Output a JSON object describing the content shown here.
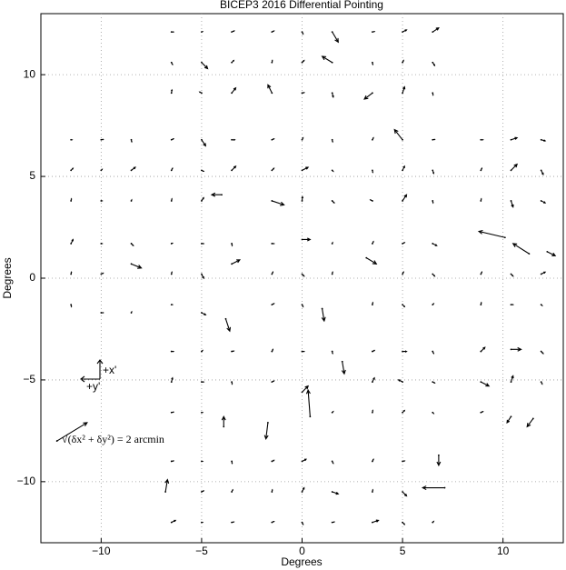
{
  "chart_data": {
    "type": "quiver",
    "title": "BICEP3 2016 Differential Pointing",
    "x_label": "Degrees",
    "y_label": "Degrees",
    "xlim": [
      -13,
      13
    ],
    "ylim": [
      -13,
      13
    ],
    "xticks": [
      {
        "value": -10,
        "label": "−10"
      },
      {
        "value": -5,
        "label": "−5"
      },
      0,
      5,
      10
    ],
    "yticks": [
      {
        "value": -10,
        "label": "−10"
      },
      {
        "value": -5,
        "label": "−5"
      },
      0,
      5,
      10
    ],
    "grid": true,
    "color": "#000000",
    "axes_labels": [
      "+x'",
      "+y'"
    ],
    "scale_label": "√(δx² + δy²) = 2 arcmin",
    "scale_arrow": [
      -12.2,
      -8.0,
      1.5,
      0.9
    ],
    "arrows": [
      [
        -6.5,
        12.1,
        0.1,
        0
      ],
      [
        -5,
        12.1,
        0.05,
        0.02
      ],
      [
        -3.5,
        12.1,
        0.12,
        0.05
      ],
      [
        -6.5,
        10.6,
        0.05,
        -0.1
      ],
      [
        -5,
        10.6,
        0.3,
        -0.3
      ],
      [
        -3.5,
        10.6,
        0.1,
        0.1
      ],
      [
        -6.5,
        9.1,
        0.02,
        0.15
      ],
      [
        -5,
        9.1,
        -0.1,
        0.05
      ],
      [
        -3.5,
        9.1,
        0.2,
        0.25
      ],
      [
        -1.5,
        12.1,
        0.1,
        0.05
      ],
      [
        0,
        12.1,
        0.05,
        -0.1
      ],
      [
        1.5,
        12.1,
        0.3,
        -0.5
      ],
      [
        -1.5,
        10.6,
        0.02,
        0.1
      ],
      [
        0,
        10.6,
        0.1,
        0.1
      ],
      [
        1.5,
        10.6,
        -0.5,
        0.3
      ],
      [
        -1.5,
        9.1,
        -0.2,
        0.4
      ],
      [
        0,
        9.1,
        0.1,
        0.02
      ],
      [
        1.5,
        9.1,
        0.05,
        -0.2
      ],
      [
        3.5,
        12.1,
        0.1,
        0.02
      ],
      [
        5,
        12.1,
        0.2,
        0.1
      ],
      [
        6.5,
        12.1,
        0.3,
        0.2
      ],
      [
        3.5,
        10.6,
        0.02,
        -0.1
      ],
      [
        5,
        10.6,
        0.05,
        0.1
      ],
      [
        6.5,
        10.6,
        0.1,
        -0.15
      ],
      [
        3.5,
        9.1,
        -0.4,
        -0.3
      ],
      [
        5,
        9.1,
        0.1,
        0.3
      ],
      [
        6.5,
        9.1,
        0.02,
        -0.1
      ],
      [
        -11.5,
        6.8,
        0.05,
        0
      ],
      [
        -10,
        6.8,
        0.1,
        0.02
      ],
      [
        -8.5,
        6.8,
        0.02,
        -0.1
      ],
      [
        -11.5,
        5.3,
        0.1,
        0.1
      ],
      [
        -10,
        5.3,
        0.05,
        0.05
      ],
      [
        -8.5,
        5.3,
        0.2,
        0.15
      ],
      [
        -11.5,
        3.8,
        0.02,
        0.1
      ],
      [
        -10,
        3.8,
        0.05,
        0
      ],
      [
        -8.5,
        3.8,
        0.02,
        0.05
      ],
      [
        -6.5,
        6.8,
        0.1,
        0.05
      ],
      [
        -5,
        6.8,
        0.2,
        -0.3
      ],
      [
        -3.5,
        6.8,
        0.15,
        0
      ],
      [
        -6.5,
        5.3,
        0.05,
        0.1
      ],
      [
        -5,
        5.3,
        0.1,
        -0.05
      ],
      [
        -3.5,
        5.3,
        0.2,
        0.2
      ],
      [
        -6.5,
        3.8,
        0.02,
        0.1
      ],
      [
        -5,
        3.8,
        0.1,
        0.15
      ],
      [
        -4,
        4.1,
        -0.5,
        0
      ],
      [
        -1.5,
        6.8,
        0.1,
        0.05
      ],
      [
        0,
        6.8,
        0.05,
        0.1
      ],
      [
        1.5,
        6.8,
        0.02,
        -0.1
      ],
      [
        -1.5,
        5.3,
        0.1,
        0.1
      ],
      [
        0,
        5.3,
        0.3,
        0.15
      ],
      [
        1.5,
        5.3,
        0.05,
        -0.05
      ],
      [
        -1.5,
        3.8,
        0.6,
        -0.2
      ],
      [
        0,
        3.8,
        0.02,
        0.2
      ],
      [
        1.5,
        3.8,
        0.1,
        -0.1
      ],
      [
        3.5,
        6.8,
        0.05,
        0.1
      ],
      [
        5,
        6.8,
        -0.4,
        0.5
      ],
      [
        6.5,
        6.8,
        0.1,
        0.02
      ],
      [
        3.5,
        5.3,
        0.02,
        -0.1
      ],
      [
        5,
        5.3,
        0.1,
        0.2
      ],
      [
        6.5,
        5.3,
        0.05,
        -0.15
      ],
      [
        3.5,
        3.8,
        -0.1,
        0.05
      ],
      [
        5,
        3.8,
        0.2,
        0.3
      ],
      [
        6.5,
        3.8,
        0.02,
        -0.1
      ],
      [
        8.9,
        6.8,
        0.1,
        0
      ],
      [
        10.4,
        6.8,
        0.3,
        0.1
      ],
      [
        11.9,
        6.8,
        0.2,
        -0.05
      ],
      [
        8.9,
        5.3,
        0.05,
        0.1
      ],
      [
        10.4,
        5.3,
        0.3,
        0.3
      ],
      [
        11.9,
        5.3,
        0.1,
        -0.2
      ],
      [
        8.9,
        3.8,
        0.02,
        0.1
      ],
      [
        10.4,
        3.8,
        0.1,
        -0.3
      ],
      [
        11.9,
        3.8,
        0.2,
        -0.1
      ],
      [
        -11.5,
        1.7,
        0.1,
        0.2
      ],
      [
        -10,
        1.7,
        0.05,
        0
      ],
      [
        -8.5,
        1.7,
        0.1,
        -0.1
      ],
      [
        -11.5,
        0.2,
        0.02,
        0.1
      ],
      [
        -10,
        0.2,
        0.1,
        0.05
      ],
      [
        -8.5,
        0.7,
        0.5,
        -0.2
      ],
      [
        -11.5,
        -1.3,
        0.02,
        -0.1
      ],
      [
        -10,
        -1.7,
        0.1,
        0
      ],
      [
        -8.5,
        -1.7,
        0.02,
        0.05
      ],
      [
        -6.5,
        1.7,
        0.05,
        0.02
      ],
      [
        -5,
        1.7,
        0.1,
        0
      ],
      [
        -3.5,
        1.7,
        0.02,
        -0.1
      ],
      [
        -6.5,
        0.2,
        0.02,
        0.1
      ],
      [
        -5,
        0.2,
        0.1,
        -0.2
      ],
      [
        -3.5,
        0.7,
        0.4,
        0.2
      ],
      [
        -6.5,
        -1.3,
        0.05,
        0
      ],
      [
        -5,
        -1.7,
        0.2,
        -0.1
      ],
      [
        -3.8,
        -2.0,
        0.2,
        -0.6
      ],
      [
        -1.5,
        1.7,
        0.1,
        0
      ],
      [
        0,
        1.9,
        0.4,
        0
      ],
      [
        1.5,
        1.7,
        0.02,
        0.05
      ],
      [
        -1.5,
        0.2,
        0.05,
        0.1
      ],
      [
        0,
        0.2,
        0.1,
        -0.1
      ],
      [
        1.5,
        0.2,
        0.02,
        0.1
      ],
      [
        -1.5,
        -1.3,
        0.1,
        0.05
      ],
      [
        0,
        -1.3,
        0.05,
        -0.1
      ],
      [
        1.0,
        -1.5,
        0.1,
        -0.6
      ],
      [
        3.5,
        1.7,
        0.05,
        0.1
      ],
      [
        5,
        1.7,
        0.1,
        0.05
      ],
      [
        6.5,
        1.7,
        0.2,
        -0.1
      ],
      [
        3.2,
        1.0,
        0.5,
        -0.3
      ],
      [
        5,
        0.2,
        0.05,
        0.1
      ],
      [
        6.5,
        0.2,
        0.1,
        -0.1
      ],
      [
        3.5,
        -1.3,
        0.02,
        0.1
      ],
      [
        5,
        -1.3,
        0.1,
        -0.1
      ],
      [
        6.5,
        -1.3,
        0.05,
        0.05
      ],
      [
        10.1,
        2.0,
        -1.3,
        0.3
      ],
      [
        11.3,
        1.2,
        -0.8,
        0.5
      ],
      [
        12.2,
        1.3,
        0.4,
        -0.2
      ],
      [
        8.9,
        0.2,
        0.05,
        0.1
      ],
      [
        10.4,
        0.2,
        0.1,
        -0.1
      ],
      [
        11.9,
        0.2,
        0.2,
        0.1
      ],
      [
        8.9,
        -1.3,
        0.02,
        0.1
      ],
      [
        10.4,
        -1.3,
        0.1,
        0
      ],
      [
        11.9,
        -1.3,
        0.05,
        -0.05
      ],
      [
        -6.5,
        -3.6,
        0.1,
        0
      ],
      [
        -5,
        -3.6,
        0.05,
        0.05
      ],
      [
        -3.5,
        -3.6,
        0.1,
        0.02
      ],
      [
        -6.5,
        -5.1,
        0.05,
        0.2
      ],
      [
        -5,
        -5.1,
        0.1,
        0
      ],
      [
        -3.5,
        -5.1,
        0.02,
        -0.1
      ],
      [
        -6.5,
        -6.6,
        0.1,
        0.02
      ],
      [
        -5,
        -6.6,
        0.05,
        0
      ],
      [
        -3.9,
        -7.3,
        0,
        0.5
      ],
      [
        -1.5,
        -3.6,
        0.05,
        0.1
      ],
      [
        0,
        -3.6,
        0.1,
        0
      ],
      [
        1.5,
        -3.6,
        0.02,
        -0.1
      ],
      [
        -1.5,
        -5.1,
        0.1,
        0.05
      ],
      [
        0,
        -5.6,
        0.3,
        0.3
      ],
      [
        2.0,
        -4.1,
        0.1,
        -0.6
      ],
      [
        -1.7,
        -7.1,
        -0.1,
        -0.8
      ],
      [
        0.4,
        -6.8,
        -0.1,
        1.3
      ],
      [
        1.5,
        -6.6,
        0.05,
        0.05
      ],
      [
        3.5,
        -3.6,
        0.1,
        0.05
      ],
      [
        5,
        -3.6,
        0.2,
        0
      ],
      [
        6.5,
        -3.6,
        0.05,
        -0.1
      ],
      [
        3.5,
        -5.1,
        0.1,
        0.2
      ],
      [
        5,
        -5.1,
        -0.2,
        0.1
      ],
      [
        6.5,
        -5.1,
        0.1,
        -0.05
      ],
      [
        3.5,
        -6.6,
        0.02,
        0.1
      ],
      [
        5,
        -6.6,
        0.1,
        0.1
      ],
      [
        6.5,
        -6.6,
        0.05,
        -0.05
      ],
      [
        8.9,
        -3.6,
        0.2,
        0.2
      ],
      [
        10.4,
        -3.5,
        0.5,
        0
      ],
      [
        11.9,
        -3.6,
        0.1,
        -0.1
      ],
      [
        8.9,
        -5.1,
        0.4,
        -0.2
      ],
      [
        10.4,
        -5.1,
        0.1,
        0.3
      ],
      [
        11.9,
        -5.1,
        0.05,
        -0.1
      ],
      [
        8.9,
        -6.6,
        0.1,
        0.05
      ],
      [
        10.4,
        -6.8,
        -0.2,
        -0.3
      ],
      [
        11.5,
        -6.9,
        -0.3,
        -0.4
      ],
      [
        -6.5,
        -9.0,
        0.1,
        0.02
      ],
      [
        -5,
        -9.0,
        0.05,
        0
      ],
      [
        -3.5,
        -9.0,
        0.02,
        -0.1
      ],
      [
        -6.8,
        -10.5,
        0.1,
        0.6
      ],
      [
        -5,
        -10.5,
        0.1,
        0.05
      ],
      [
        -3.5,
        -10.5,
        0.05,
        0.1
      ],
      [
        -6.5,
        -12.0,
        0.2,
        0.1
      ],
      [
        -5,
        -12.0,
        0.05,
        0
      ],
      [
        -3.5,
        -12.0,
        0.1,
        0.02
      ],
      [
        -1.5,
        -9.0,
        0.1,
        0.05
      ],
      [
        0,
        -9.0,
        0.2,
        0.1
      ],
      [
        1.5,
        -9.0,
        0.05,
        -0.1
      ],
      [
        -1.5,
        -10.5,
        0.02,
        0.1
      ],
      [
        0,
        -10.5,
        0.1,
        0.2
      ],
      [
        1.5,
        -10.5,
        0.3,
        -0.1
      ],
      [
        -1.5,
        -12.0,
        0.1,
        0.05
      ],
      [
        0,
        -12.0,
        0.05,
        -0.1
      ],
      [
        1.5,
        -12.0,
        0.1,
        0.02
      ],
      [
        3.5,
        -9.0,
        0.05,
        0.1
      ],
      [
        5,
        -9.0,
        0.1,
        0.02
      ],
      [
        6.8,
        -8.7,
        0,
        -0.5
      ],
      [
        3.5,
        -10.5,
        0.02,
        0.1
      ],
      [
        5,
        -10.5,
        0.2,
        -0.2
      ],
      [
        7.1,
        -10.3,
        -1.1,
        0
      ],
      [
        3.5,
        -12.0,
        0.3,
        0.1
      ],
      [
        5,
        -12.0,
        0.1,
        -0.1
      ],
      [
        6.5,
        -12.0,
        0.05,
        0.05
      ]
    ]
  }
}
